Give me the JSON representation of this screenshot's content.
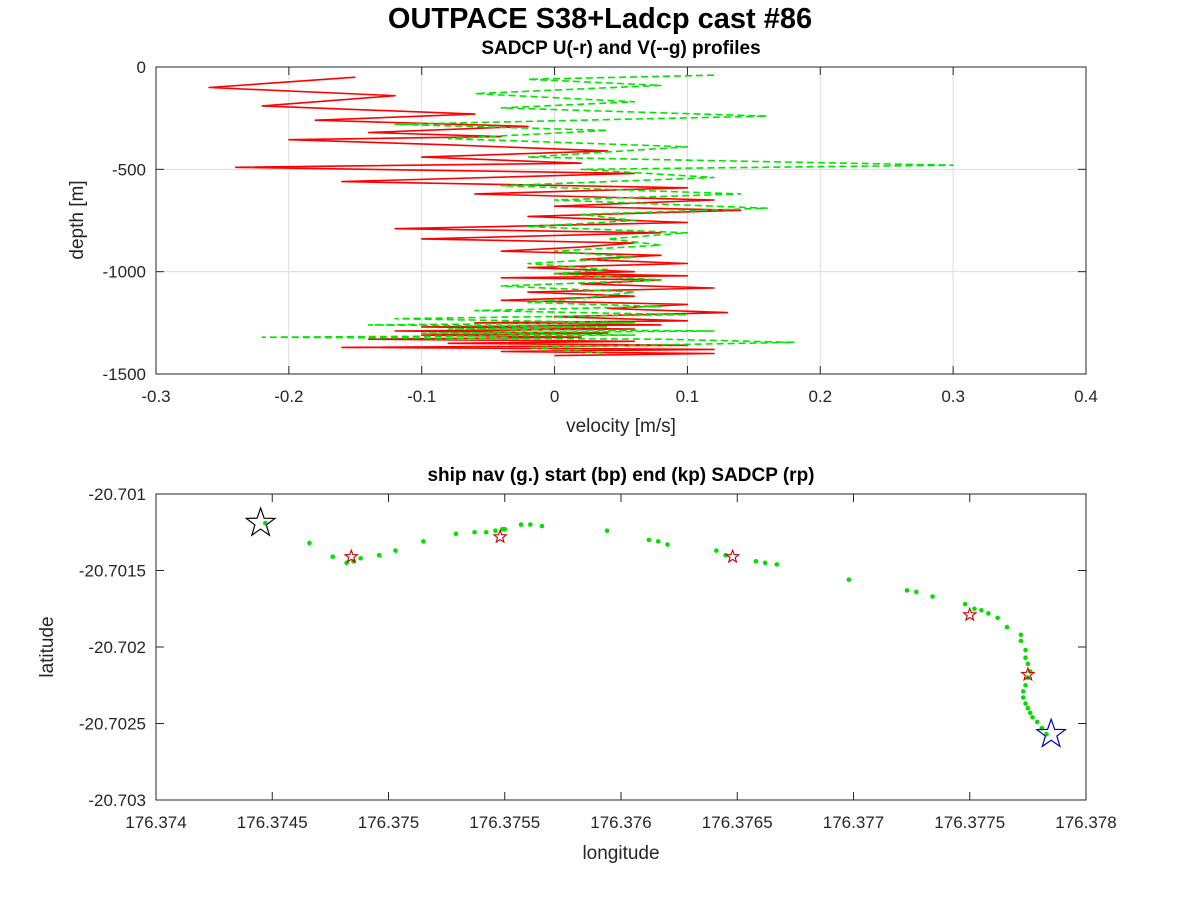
{
  "figure": {
    "title": "OUTPACE S38+Ladcp cast #86"
  },
  "colors": {
    "u_series": "#ff0000",
    "v_series": "#00e600",
    "grid": "#dcdcdc",
    "axis": "#262626",
    "start_star": "#0000b0",
    "end_star": "#000000",
    "sadcp_star": "#cc0000",
    "nav_dots": "#00e000"
  },
  "chart_data": [
    {
      "type": "line",
      "title": "SADCP U(-r) and V(--g) profiles",
      "xlabel": "velocity [m/s]",
      "ylabel": "depth [m]",
      "xlim": [
        -0.3,
        0.4
      ],
      "ylim": [
        -1500,
        0
      ],
      "grid": true,
      "xticks": [
        -0.3,
        -0.2,
        -0.1,
        0,
        0.1,
        0.2,
        0.3,
        0.4
      ],
      "xtick_labels": [
        "-0.3",
        "-0.2",
        "-0.1",
        "0",
        "0.1",
        "0.2",
        "0.3",
        "0.4"
      ],
      "yticks": [
        -1500,
        -1000,
        -500,
        0
      ],
      "ytick_labels": [
        "-1500",
        "-1000",
        "-500",
        "0"
      ],
      "series": [
        {
          "style": "solid-red",
          "x": [
            -0.15,
            -0.26,
            -0.12,
            -0.22,
            -0.06,
            -0.18,
            -0.02,
            -0.14,
            -0.04,
            -0.2,
            -0.08,
            0.04,
            -0.1,
            0.02,
            -0.24,
            0.06,
            -0.16,
            0.1,
            -0.06,
            0.12,
            0.0,
            0.14,
            -0.02,
            0.1,
            -0.12,
            0.08,
            -0.1,
            0.06,
            0.02,
            -0.04,
            0.08,
            0.02,
            0.1,
            -0.02,
            0.06,
            0.0,
            0.1,
            -0.04,
            0.08,
            0.02,
            0.12,
            -0.02,
            0.06,
            -0.04,
            0.1,
            0.04,
            0.13,
            0.0,
            0.1,
            -0.06,
            0.08,
            -0.1,
            0.06,
            -0.12,
            0.04,
            -0.1,
            0.02,
            -0.14,
            0.06,
            -0.08,
            0.1,
            -0.16,
            0.12,
            -0.04,
            0.12,
            0.0
          ],
          "y": [
            -50,
            -100,
            -140,
            -190,
            -230,
            -260,
            -290,
            -320,
            -340,
            -355,
            -380,
            -410,
            -440,
            -470,
            -490,
            -520,
            -560,
            -590,
            -620,
            -650,
            -680,
            -700,
            -730,
            -760,
            -790,
            -810,
            -840,
            -860,
            -880,
            -900,
            -920,
            -940,
            -960,
            -980,
            -1000,
            -1010,
            -1020,
            -1030,
            -1040,
            -1060,
            -1080,
            -1100,
            -1120,
            -1140,
            -1160,
            -1180,
            -1200,
            -1220,
            -1240,
            -1250,
            -1260,
            -1270,
            -1280,
            -1290,
            -1300,
            -1310,
            -1320,
            -1330,
            -1340,
            -1350,
            -1360,
            -1370,
            -1380,
            -1390,
            -1400,
            -1410
          ]
        },
        {
          "style": "dashed-green",
          "x": [
            0.12,
            -0.02,
            0.08,
            -0.06,
            0.06,
            -0.04,
            0.16,
            -0.12,
            0.04,
            -0.08,
            0.1,
            -0.02,
            0.3,
            0.02,
            0.12,
            -0.04,
            0.14,
            0.0,
            0.16,
            0.02,
            0.06,
            -0.02,
            0.1,
            0.04,
            0.08,
            0.0,
            0.06,
            -0.02,
            0.04,
            0.0,
            0.08,
            -0.04,
            0.06,
            0.02,
            -0.02,
            0.08,
            -0.06,
            0.1,
            -0.12,
            0.06,
            -0.14,
            0.04,
            -0.08,
            0.12,
            -0.1,
            0.06,
            -0.22,
            0.08,
            0.18,
            -0.02,
            0.04
          ],
          "y": [
            -40,
            -60,
            -90,
            -130,
            -170,
            -200,
            -240,
            -280,
            -310,
            -350,
            -390,
            -440,
            -480,
            -500,
            -540,
            -580,
            -620,
            -650,
            -690,
            -720,
            -750,
            -780,
            -810,
            -840,
            -870,
            -900,
            -930,
            -960,
            -990,
            -1010,
            -1040,
            -1070,
            -1100,
            -1130,
            -1150,
            -1170,
            -1190,
            -1210,
            -1230,
            -1250,
            -1260,
            -1270,
            -1280,
            -1290,
            -1300,
            -1310,
            -1320,
            -1330,
            -1345,
            -1370,
            -1400
          ]
        }
      ]
    },
    {
      "type": "scatter",
      "title": "ship nav (g.) start (bp) end (kp) SADCP (rp)",
      "xlabel": "longitude",
      "ylabel": "latitude",
      "xlim": [
        176.374,
        176.378
      ],
      "ylim": [
        -20.703,
        -20.701
      ],
      "grid": false,
      "xticks": [
        176.374,
        176.3745,
        176.375,
        176.3755,
        176.376,
        176.3765,
        176.377,
        176.3775,
        176.378
      ],
      "xtick_labels": [
        "176.374",
        "176.3745",
        "176.375",
        "176.3755",
        "176.376",
        "176.3765",
        "176.377",
        "176.3775",
        "176.378"
      ],
      "yticks": [
        -20.703,
        -20.7025,
        -20.702,
        -20.7015,
        -20.701
      ],
      "ytick_labels": [
        "-20.703",
        "-20.7025",
        "-20.702",
        "-20.7015",
        "-20.701"
      ],
      "series": [
        {
          "style": "green-dots",
          "x": [
            176.37447,
            176.37466,
            176.37476,
            176.37482,
            176.37485,
            176.37488,
            176.37496,
            176.37503,
            176.37515,
            176.37529,
            176.37537,
            176.37542,
            176.37546,
            176.37549,
            176.3755,
            176.37557,
            176.37561,
            176.37566,
            176.37594,
            176.37612,
            176.37616,
            176.3762,
            176.37641,
            176.37645,
            176.37658,
            176.37662,
            176.37667,
            176.37698,
            176.37723,
            176.37727,
            176.37734,
            176.37748,
            176.37752,
            176.37755,
            176.37758,
            176.37762,
            176.37766,
            176.37772,
            176.37772,
            176.37774,
            176.37774,
            176.37775,
            176.37776,
            176.37775,
            176.37774,
            176.37773,
            176.37773,
            176.37774,
            176.37775,
            176.37776,
            176.37777,
            176.37779,
            176.37781,
            176.37783
          ],
          "y": [
            -20.70119,
            -20.70132,
            -20.70141,
            -20.70145,
            -20.70144,
            -20.70142,
            -20.7014,
            -20.70137,
            -20.70131,
            -20.70126,
            -20.70125,
            -20.70125,
            -20.70124,
            -20.70123,
            -20.70123,
            -20.7012,
            -20.7012,
            -20.70121,
            -20.70124,
            -20.7013,
            -20.70131,
            -20.70133,
            -20.70137,
            -20.7014,
            -20.70144,
            -20.70145,
            -20.70146,
            -20.70156,
            -20.70163,
            -20.70164,
            -20.70167,
            -20.70172,
            -20.70175,
            -20.70176,
            -20.70178,
            -20.70181,
            -20.70187,
            -20.70192,
            -20.70196,
            -20.70202,
            -20.70207,
            -20.70211,
            -20.70216,
            -20.7022,
            -20.70225,
            -20.70229,
            -20.70233,
            -20.70237,
            -20.7024,
            -20.70243,
            -20.70246,
            -20.70249,
            -20.70253,
            -20.70257
          ]
        },
        {
          "style": "start-blue-star",
          "x": [
            176.37785
          ],
          "y": [
            -20.70257
          ]
        },
        {
          "style": "end-black-star",
          "x": [
            176.37445
          ],
          "y": [
            -20.70119
          ]
        },
        {
          "style": "sadcp-red-stars",
          "x": [
            176.37484,
            176.37548,
            176.37648,
            176.3775,
            176.37775
          ],
          "y": [
            -20.70141,
            -20.70128,
            -20.70141,
            -20.70179,
            -20.70218
          ]
        }
      ]
    }
  ]
}
